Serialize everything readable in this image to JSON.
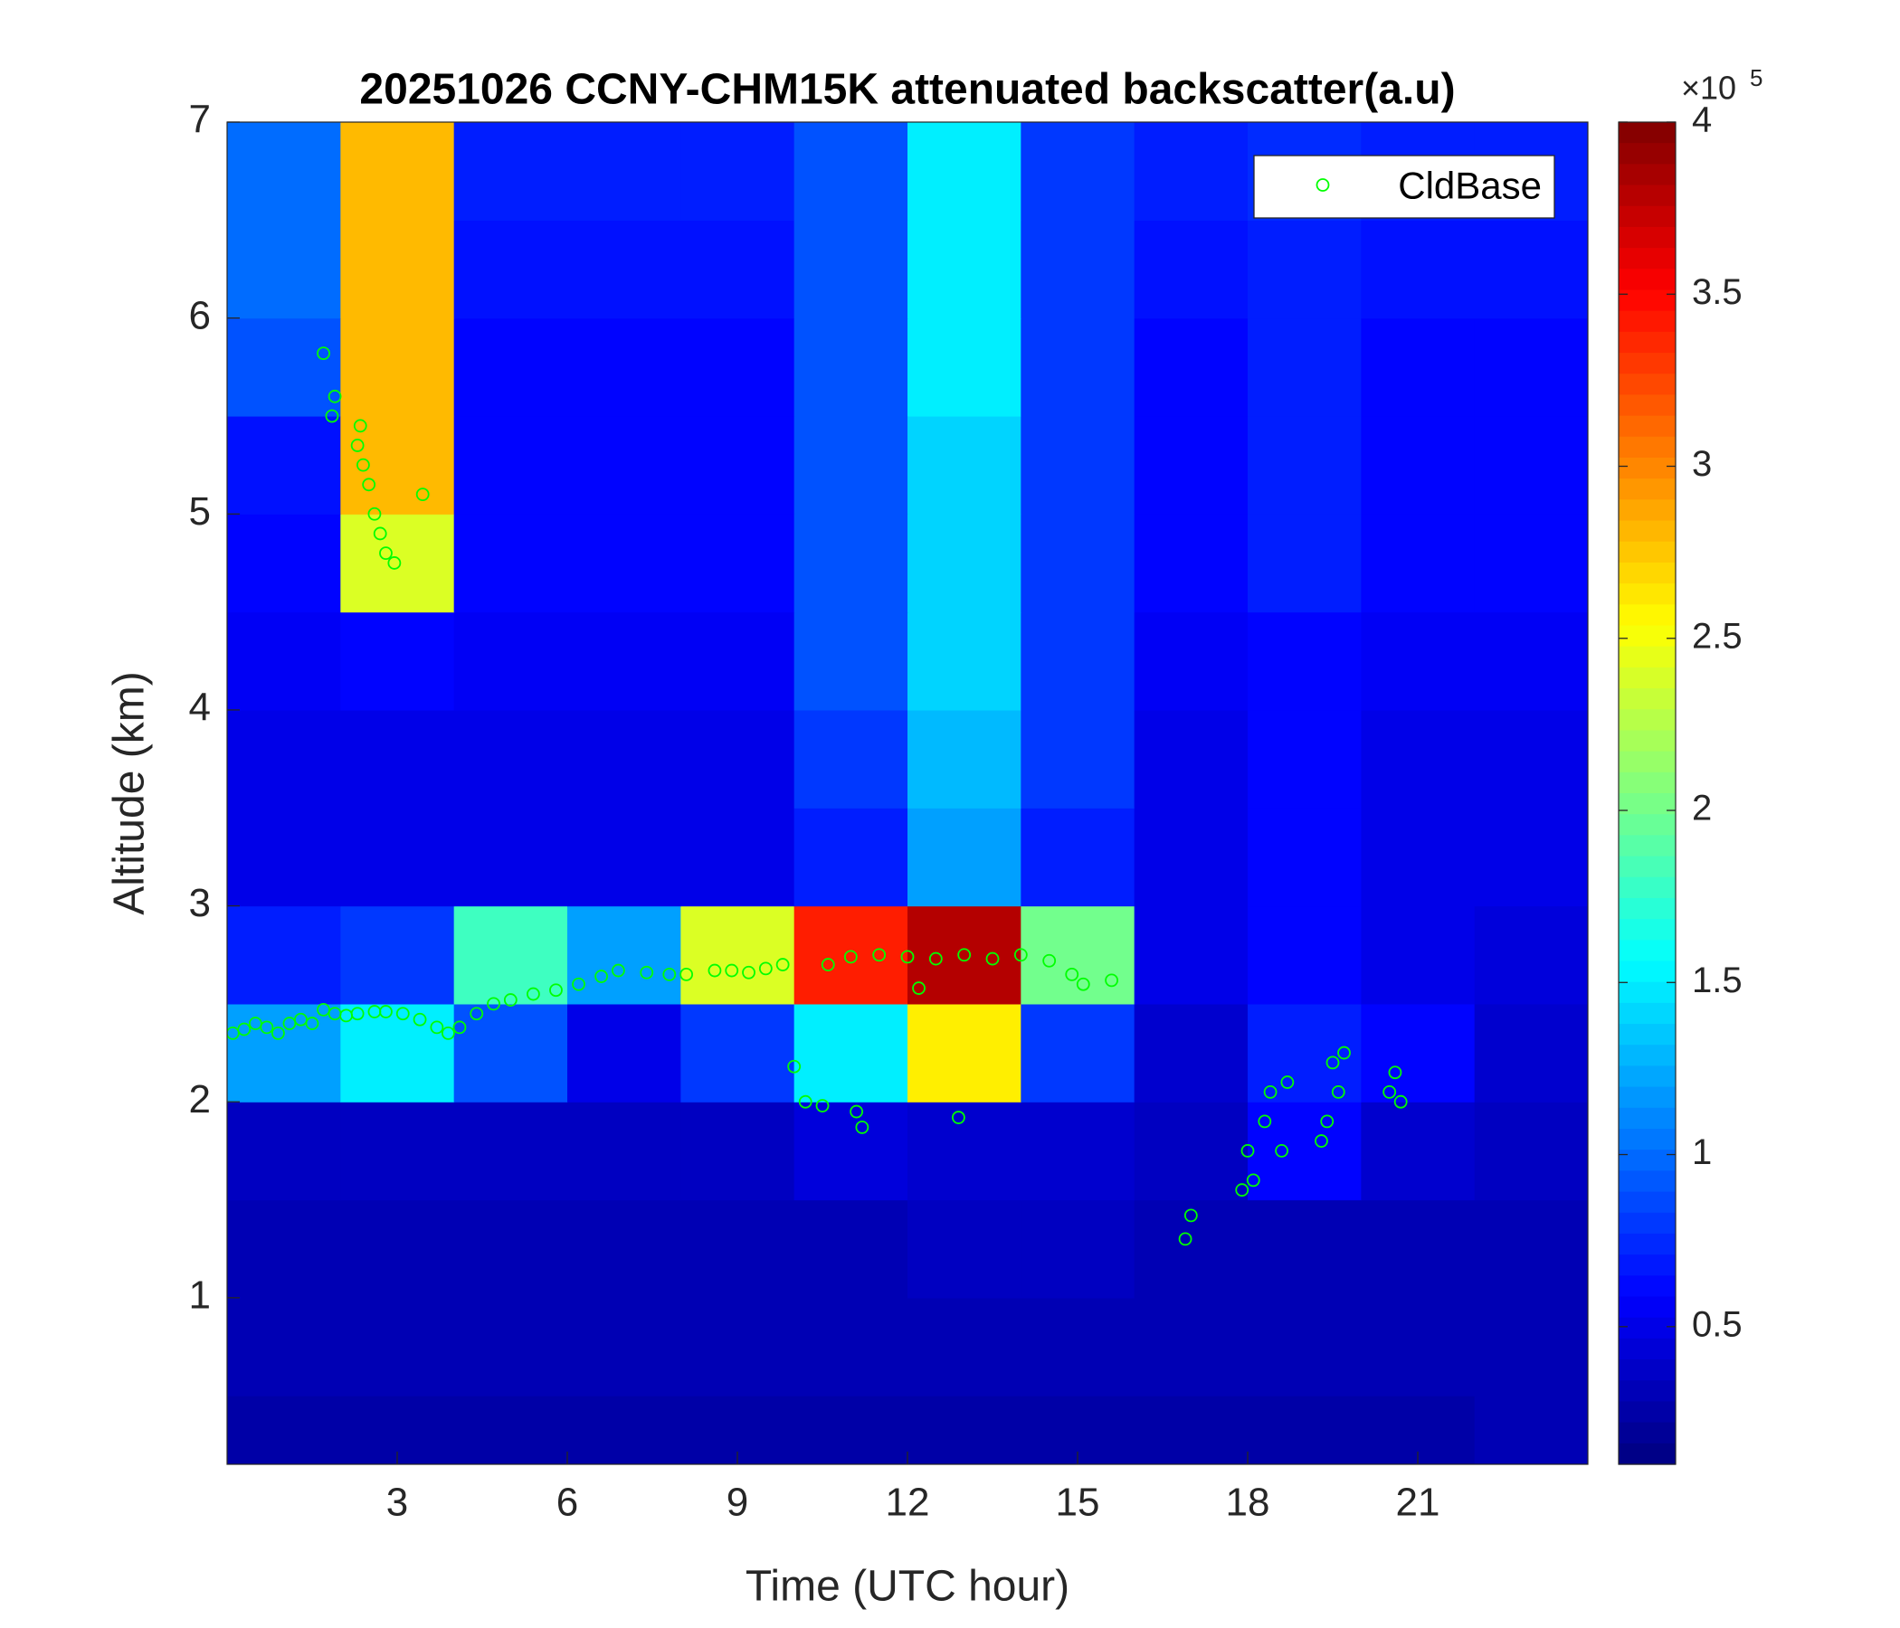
{
  "chart_data": {
    "type": "heatmap",
    "title": "20251026 CCNY-CHM15K attenuated backscatter(a.u)",
    "x_label": "Time (UTC hour)",
    "y_label": "Altitude (km)",
    "xlim": [
      0,
      24
    ],
    "ylim": [
      0.15,
      7
    ],
    "xticks": [
      3,
      6,
      9,
      12,
      15,
      18,
      21
    ],
    "yticks": [
      1,
      2,
      3,
      4,
      5,
      6,
      7
    ],
    "x": [
      1,
      3,
      5,
      7,
      9,
      11,
      13,
      15,
      17,
      19,
      21,
      23
    ],
    "y": [
      0.25,
      0.75,
      1.25,
      1.75,
      2.25,
      2.75,
      3.25,
      3.75,
      4.25,
      4.75,
      5.25,
      5.75,
      6.25,
      6.75
    ],
    "z": [
      [
        0.25,
        0.25,
        0.25,
        0.25,
        0.25,
        0.25,
        0.25,
        0.25,
        0.25,
        0.25,
        0.25,
        0.3
      ],
      [
        0.3,
        0.3,
        0.3,
        0.3,
        0.3,
        0.3,
        0.3,
        0.3,
        0.3,
        0.3,
        0.3,
        0.3
      ],
      [
        0.3,
        0.3,
        0.3,
        0.3,
        0.3,
        0.3,
        0.35,
        0.35,
        0.3,
        0.3,
        0.3,
        0.3
      ],
      [
        0.35,
        0.35,
        0.35,
        0.35,
        0.35,
        0.45,
        0.4,
        0.4,
        0.35,
        0.6,
        0.4,
        0.35
      ],
      [
        1.2,
        1.5,
        0.9,
        0.5,
        0.8,
        1.5,
        2.6,
        0.8,
        0.4,
        0.7,
        0.6,
        0.4
      ],
      [
        0.7,
        0.8,
        1.8,
        1.2,
        2.4,
        3.4,
        3.8,
        2.0,
        0.5,
        0.6,
        0.5,
        0.45
      ],
      [
        0.5,
        0.5,
        0.5,
        0.5,
        0.5,
        0.7,
        1.2,
        0.7,
        0.5,
        0.6,
        0.5,
        0.5
      ],
      [
        0.5,
        0.5,
        0.5,
        0.5,
        0.5,
        0.8,
        1.3,
        0.8,
        0.5,
        0.6,
        0.5,
        0.5
      ],
      [
        0.55,
        0.6,
        0.55,
        0.55,
        0.55,
        0.9,
        1.4,
        0.8,
        0.55,
        0.6,
        0.55,
        0.55
      ],
      [
        0.6,
        2.4,
        0.6,
        0.6,
        0.6,
        0.9,
        1.4,
        0.8,
        0.6,
        0.7,
        0.6,
        0.6
      ],
      [
        0.65,
        2.8,
        0.6,
        0.6,
        0.6,
        0.9,
        1.4,
        0.8,
        0.6,
        0.7,
        0.6,
        0.6
      ],
      [
        0.9,
        2.8,
        0.6,
        0.6,
        0.6,
        0.9,
        1.5,
        0.8,
        0.6,
        0.7,
        0.6,
        0.6
      ],
      [
        1.0,
        2.8,
        0.65,
        0.65,
        0.65,
        0.9,
        1.5,
        0.8,
        0.65,
        0.7,
        0.65,
        0.65
      ],
      [
        1.0,
        2.8,
        0.7,
        0.7,
        0.7,
        0.9,
        1.5,
        0.8,
        0.7,
        0.75,
        0.7,
        0.7
      ]
    ],
    "colormap": "jet",
    "clim": [
      0.1,
      4
    ],
    "colorbar_ticks": [
      0.5,
      1,
      1.5,
      2,
      2.5,
      3,
      3.5,
      4
    ],
    "colorbar_multiplier": "×10",
    "colorbar_exponent": "5",
    "legend": "upper right",
    "series": [
      {
        "name": "CldBase",
        "color": "#00ff00",
        "x": [
          0.1,
          0.3,
          0.5,
          0.7,
          0.9,
          1.1,
          1.3,
          1.5,
          1.7,
          1.9,
          2.1,
          2.3,
          2.6,
          1.7,
          1.85,
          1.9,
          2.3,
          2.35,
          2.4,
          2.5,
          2.6,
          2.7,
          2.8,
          2.95,
          3.45,
          2.8,
          3.1,
          3.4,
          3.7,
          3.9,
          4.1,
          4.4,
          4.7,
          5,
          5.4,
          5.8,
          6.2,
          6.6,
          6.9,
          7.4,
          7.8,
          8.1,
          8.6,
          8.9,
          9.2,
          9.5,
          9.8,
          10.0,
          10.2,
          10.5,
          10.6,
          11.0,
          11.1,
          11.2,
          11.5,
          12,
          12.2,
          12.5,
          12.9,
          13,
          13.5,
          14,
          14.5,
          14.9,
          15.1,
          15.6,
          16.9,
          17.0,
          17.9,
          18.0,
          18.1,
          18.3,
          18.4,
          18.6,
          18.7,
          19.3,
          19.4,
          19.5,
          19.6,
          19.7,
          20.5,
          20.6,
          20.7
        ],
        "values": [
          2.35,
          2.37,
          2.4,
          2.38,
          2.35,
          2.4,
          2.42,
          2.4,
          2.47,
          2.45,
          2.44,
          2.45,
          2.46,
          5.82,
          5.5,
          5.6,
          5.35,
          5.45,
          5.25,
          5.15,
          5.0,
          4.9,
          4.8,
          4.75,
          5.1,
          2.46,
          2.45,
          2.42,
          2.38,
          2.35,
          2.38,
          2.45,
          2.5,
          2.52,
          2.55,
          2.57,
          2.6,
          2.64,
          2.67,
          2.66,
          2.65,
          2.65,
          2.67,
          2.67,
          2.66,
          2.68,
          2.7,
          2.18,
          2.0,
          1.98,
          2.7,
          2.74,
          1.95,
          1.87,
          2.75,
          2.74,
          2.58,
          2.73,
          1.92,
          2.75,
          2.73,
          2.75,
          2.72,
          2.65,
          2.6,
          2.62,
          1.3,
          1.42,
          1.55,
          1.75,
          1.6,
          1.9,
          2.05,
          1.75,
          2.1,
          1.8,
          1.9,
          2.2,
          2.05,
          2.25,
          2.05,
          2.15,
          2.0
        ]
      }
    ]
  }
}
